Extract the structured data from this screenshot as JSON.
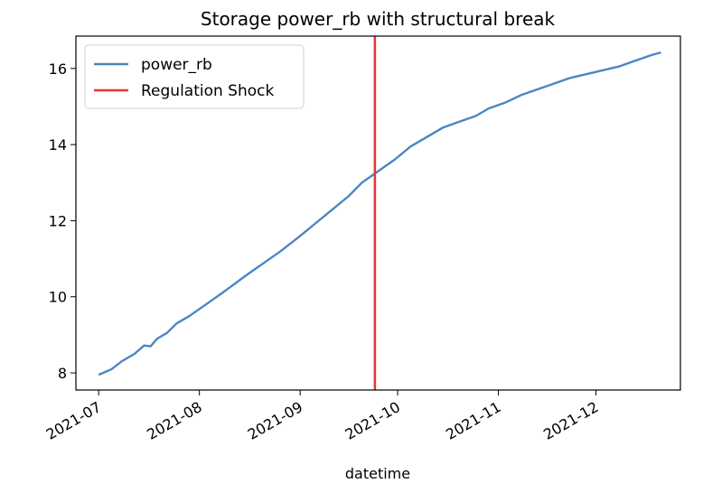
{
  "chart_data": {
    "type": "line",
    "title": "Storage power_rb with structural break",
    "xlabel": "datetime",
    "ylabel": "",
    "x_type": "date",
    "xlim": [
      "2021-06-24",
      "2021-12-27"
    ],
    "ylim": [
      7.55,
      16.85
    ],
    "x_ticks": [
      "2021-07-01",
      "2021-08-01",
      "2021-09-01",
      "2021-10-01",
      "2021-11-01",
      "2021-12-01"
    ],
    "x_tick_labels": [
      "2021-07",
      "2021-08",
      "2021-09",
      "2021-10",
      "2021-11",
      "2021-12"
    ],
    "y_ticks": [
      8,
      10,
      12,
      14,
      16
    ],
    "y_tick_labels": [
      "8",
      "10",
      "12",
      "14",
      "16"
    ],
    "grid": false,
    "legend_position": "upper-left",
    "series": [
      {
        "name": "power_rb",
        "color": "#4a86c5",
        "x": [
          "2021-07-01",
          "2021-07-05",
          "2021-07-08",
          "2021-07-12",
          "2021-07-15",
          "2021-07-17",
          "2021-07-19",
          "2021-07-22",
          "2021-07-25",
          "2021-07-29",
          "2021-08-03",
          "2021-08-08",
          "2021-08-12",
          "2021-08-16",
          "2021-08-21",
          "2021-08-26",
          "2021-09-01",
          "2021-09-06",
          "2021-09-11",
          "2021-09-16",
          "2021-09-20",
          "2021-09-25",
          "2021-09-30",
          "2021-10-05",
          "2021-10-10",
          "2021-10-15",
          "2021-10-20",
          "2021-10-25",
          "2021-10-29",
          "2021-11-03",
          "2021-11-08",
          "2021-11-13",
          "2021-11-18",
          "2021-11-23",
          "2021-11-28",
          "2021-12-03",
          "2021-12-08",
          "2021-12-13",
          "2021-12-18",
          "2021-12-21"
        ],
        "y": [
          7.95,
          8.1,
          8.3,
          8.5,
          8.72,
          8.7,
          8.9,
          9.05,
          9.3,
          9.5,
          9.8,
          10.1,
          10.35,
          10.6,
          10.9,
          11.2,
          11.6,
          11.95,
          12.3,
          12.65,
          13.0,
          13.3,
          13.6,
          13.95,
          14.2,
          14.45,
          14.6,
          14.75,
          14.95,
          15.1,
          15.3,
          15.45,
          15.6,
          15.75,
          15.85,
          15.95,
          16.05,
          16.2,
          16.35,
          16.42
        ]
      }
    ],
    "vlines": [
      {
        "name": "Regulation Shock",
        "x": "2021-09-24",
        "color": "#e8352f"
      }
    ]
  }
}
